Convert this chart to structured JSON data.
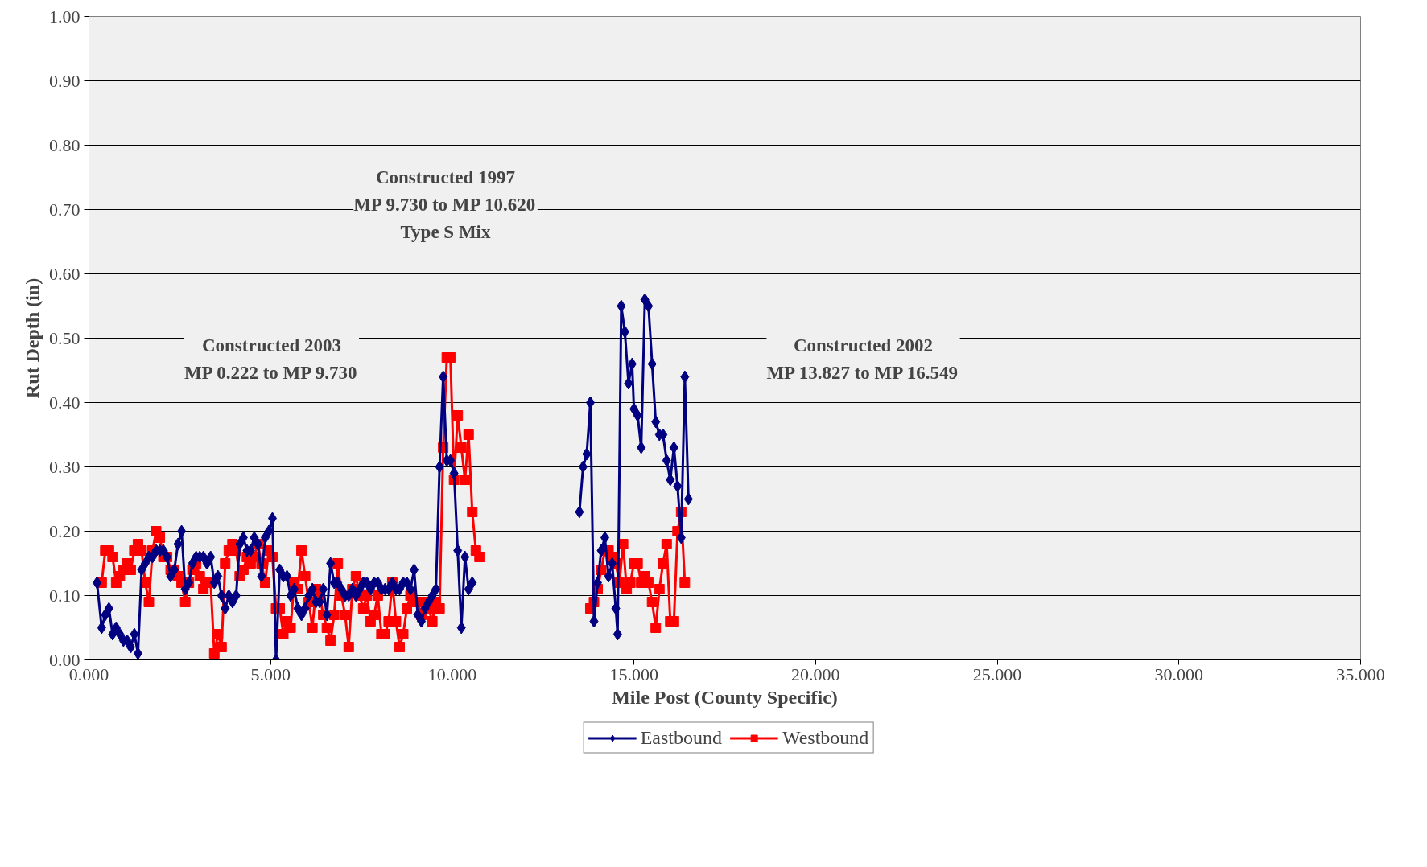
{
  "chart_data": {
    "type": "line",
    "xlabel": "Mile Post (County Specific)",
    "ylabel": "Rut Depth (in)",
    "annotations": [
      "Constructed 2003\nMP 0.222 to MP 9.730",
      "Constructed 1997\nMP 9.730 to MP 10.620\nType S Mix",
      "Constructed 2002\nMP 13.827 to MP 16.549"
    ],
    "xlim": [
      0,
      35
    ],
    "ylim": [
      0,
      1
    ],
    "xticks": [
      {
        "value": 0,
        "label": "0.000"
      },
      {
        "value": 5,
        "label": "5.000"
      },
      {
        "value": 10,
        "label": "10.000"
      },
      {
        "value": 15,
        "label": "15.000"
      },
      {
        "value": 20,
        "label": "20.000"
      },
      {
        "value": 25,
        "label": "25.000"
      },
      {
        "value": 30,
        "label": "30.000"
      },
      {
        "value": 35,
        "label": "35.000"
      }
    ],
    "yticks": [
      {
        "value": 0,
        "label": "0.00"
      },
      {
        "value": 0.1,
        "label": "0.10"
      },
      {
        "value": 0.2,
        "label": "0.20"
      },
      {
        "value": 0.3,
        "label": "0.30"
      },
      {
        "value": 0.4,
        "label": "0.40"
      },
      {
        "value": 0.5,
        "label": "0.50"
      },
      {
        "value": 0.6,
        "label": "0.60"
      },
      {
        "value": 0.7,
        "label": "0.70"
      },
      {
        "value": 0.8,
        "label": "0.80"
      },
      {
        "value": 0.9,
        "label": "0.90"
      },
      {
        "value": 1,
        "label": "1.00"
      }
    ],
    "grid": "y",
    "legend": "bottom",
    "line_style": "solid",
    "series": [
      {
        "name": "Eastbound",
        "color": "#000080",
        "marker": "diamond",
        "x": [
          0.222,
          0.35,
          0.45,
          0.55,
          0.65,
          0.75,
          0.85,
          0.95,
          1.05,
          1.15,
          1.25,
          1.35,
          1.45,
          1.55,
          1.65,
          1.75,
          1.85,
          1.95,
          2.05,
          2.15,
          2.25,
          2.35,
          2.45,
          2.55,
          2.65,
          2.75,
          2.85,
          2.95,
          3.05,
          3.15,
          3.25,
          3.35,
          3.45,
          3.55,
          3.65,
          3.75,
          3.85,
          3.95,
          4.05,
          4.15,
          4.25,
          4.35,
          4.45,
          4.55,
          4.65,
          4.75,
          4.85,
          4.95,
          5.05,
          5.15,
          5.25,
          5.35,
          5.45,
          5.55,
          5.65,
          5.75,
          5.85,
          5.95,
          6.05,
          6.15,
          6.25,
          6.35,
          6.45,
          6.55,
          6.65,
          6.75,
          6.85,
          6.95,
          7.05,
          7.15,
          7.25,
          7.35,
          7.45,
          7.55,
          7.65,
          7.75,
          7.85,
          7.95,
          8.05,
          8.15,
          8.25,
          8.35,
          8.45,
          8.55,
          8.65,
          8.75,
          8.85,
          8.95,
          9.05,
          9.15,
          9.25,
          9.35,
          9.45,
          9.55,
          9.65,
          9.75,
          9.85,
          9.95,
          10.05,
          10.15,
          10.25,
          10.35,
          10.45,
          10.55,
          12.0,
          13.5,
          13.6,
          13.7,
          13.8,
          13.9,
          14.0,
          14.1,
          14.2,
          14.3,
          14.4,
          14.5,
          14.55,
          14.65,
          14.75,
          14.85,
          14.95,
          15.0,
          15.1,
          15.2,
          15.3,
          15.4,
          15.5,
          15.6,
          15.7,
          15.8,
          15.9,
          16.0,
          16.1,
          16.2,
          16.3,
          16.4,
          16.5
        ],
        "values": [
          0.12,
          0.05,
          0.07,
          0.08,
          0.04,
          0.05,
          0.04,
          0.03,
          0.03,
          0.02,
          0.04,
          0.01,
          0.14,
          0.15,
          0.16,
          0.16,
          0.17,
          0.17,
          0.17,
          0.16,
          0.13,
          0.14,
          0.18,
          0.2,
          0.11,
          0.12,
          0.15,
          0.16,
          0.16,
          0.16,
          0.15,
          0.16,
          0.12,
          0.13,
          0.1,
          0.08,
          0.1,
          0.09,
          0.1,
          0.18,
          0.19,
          0.17,
          0.17,
          0.19,
          0.18,
          0.13,
          0.19,
          0.2,
          0.22,
          0.0,
          0.14,
          0.13,
          0.13,
          0.1,
          0.11,
          0.08,
          0.07,
          0.08,
          0.1,
          0.11,
          0.09,
          0.09,
          0.11,
          0.07,
          0.15,
          0.12,
          0.12,
          0.11,
          0.1,
          0.1,
          0.11,
          0.1,
          0.11,
          0.12,
          0.12,
          0.11,
          0.12,
          0.12,
          0.11,
          0.11,
          0.11,
          0.12,
          0.11,
          0.11,
          0.12,
          0.12,
          0.11,
          0.14,
          0.07,
          0.06,
          0.08,
          0.09,
          0.1,
          0.11,
          0.3,
          0.44,
          0.31,
          0.31,
          0.29,
          0.17,
          0.05,
          0.16,
          0.11,
          0.12,
          null,
          0.23,
          0.3,
          0.32,
          0.4,
          0.06,
          0.12,
          0.17,
          0.19,
          0.13,
          0.15,
          0.08,
          0.04,
          0.55,
          0.51,
          0.43,
          0.46,
          0.39,
          0.38,
          0.33,
          0.56,
          0.55,
          0.46,
          0.37,
          0.35,
          0.35,
          0.31,
          0.28,
          0.33,
          0.27,
          0.19,
          0.44,
          0.25
        ]
      },
      {
        "name": "Westbound",
        "color": "#ff0000",
        "marker": "square",
        "x": [
          0.35,
          0.45,
          0.55,
          0.65,
          0.75,
          0.85,
          0.95,
          1.05,
          1.15,
          1.25,
          1.35,
          1.45,
          1.55,
          1.65,
          1.75,
          1.85,
          1.95,
          2.05,
          2.15,
          2.25,
          2.35,
          2.45,
          2.55,
          2.65,
          2.75,
          2.85,
          2.95,
          3.05,
          3.15,
          3.25,
          3.35,
          3.45,
          3.55,
          3.65,
          3.75,
          3.85,
          3.95,
          4.05,
          4.15,
          4.25,
          4.35,
          4.45,
          4.55,
          4.65,
          4.75,
          4.85,
          4.95,
          5.05,
          5.15,
          5.25,
          5.35,
          5.45,
          5.55,
          5.65,
          5.75,
          5.85,
          5.95,
          6.05,
          6.15,
          6.25,
          6.35,
          6.45,
          6.55,
          6.65,
          6.75,
          6.85,
          6.95,
          7.05,
          7.15,
          7.25,
          7.35,
          7.45,
          7.55,
          7.65,
          7.75,
          7.85,
          7.95,
          8.05,
          8.15,
          8.25,
          8.35,
          8.45,
          8.55,
          8.65,
          8.75,
          8.85,
          8.95,
          9.05,
          9.15,
          9.25,
          9.35,
          9.45,
          9.55,
          9.65,
          9.75,
          9.85,
          9.95,
          10.05,
          10.15,
          10.25,
          10.35,
          10.45,
          10.55,
          10.65,
          10.75,
          12.0,
          13.8,
          13.9,
          14.0,
          14.1,
          14.2,
          14.3,
          14.4,
          14.5,
          14.6,
          14.7,
          14.8,
          14.9,
          15.0,
          15.1,
          15.2,
          15.3,
          15.4,
          15.5,
          15.6,
          15.7,
          15.8,
          15.9,
          16.0,
          16.1,
          16.2,
          16.3,
          16.4
        ],
        "values": [
          0.12,
          0.17,
          0.17,
          0.16,
          0.12,
          0.13,
          0.14,
          0.15,
          0.14,
          0.17,
          0.18,
          0.17,
          0.12,
          0.09,
          0.17,
          0.2,
          0.19,
          0.16,
          0.16,
          0.14,
          0.14,
          0.13,
          0.12,
          0.09,
          0.12,
          0.14,
          0.15,
          0.13,
          0.11,
          0.12,
          0.12,
          0.01,
          0.04,
          0.02,
          0.15,
          0.17,
          0.18,
          0.17,
          0.13,
          0.14,
          0.16,
          0.15,
          0.16,
          0.18,
          0.15,
          0.12,
          0.17,
          0.16,
          0.08,
          0.08,
          0.04,
          0.06,
          0.05,
          0.12,
          0.11,
          0.17,
          0.13,
          0.09,
          0.05,
          0.11,
          0.1,
          0.07,
          0.05,
          0.03,
          0.07,
          0.15,
          0.1,
          0.07,
          0.02,
          0.11,
          0.13,
          0.1,
          0.08,
          0.1,
          0.06,
          0.07,
          0.1,
          0.04,
          0.04,
          0.06,
          0.12,
          0.06,
          0.02,
          0.04,
          0.08,
          0.1,
          0.09,
          0.09,
          0.07,
          0.09,
          0.08,
          0.06,
          0.09,
          0.08,
          0.33,
          0.47,
          0.47,
          0.28,
          0.38,
          0.33,
          0.28,
          0.35,
          0.23,
          0.17,
          0.16,
          null,
          0.08,
          0.09,
          0.11,
          0.14,
          0.17,
          0.17,
          0.16,
          0.15,
          0.12,
          0.18,
          0.11,
          0.12,
          0.15,
          0.15,
          0.12,
          0.13,
          0.12,
          0.09,
          0.05,
          0.11,
          0.15,
          0.18,
          0.06,
          0.06,
          0.2,
          0.23,
          0.12
        ]
      }
    ]
  }
}
